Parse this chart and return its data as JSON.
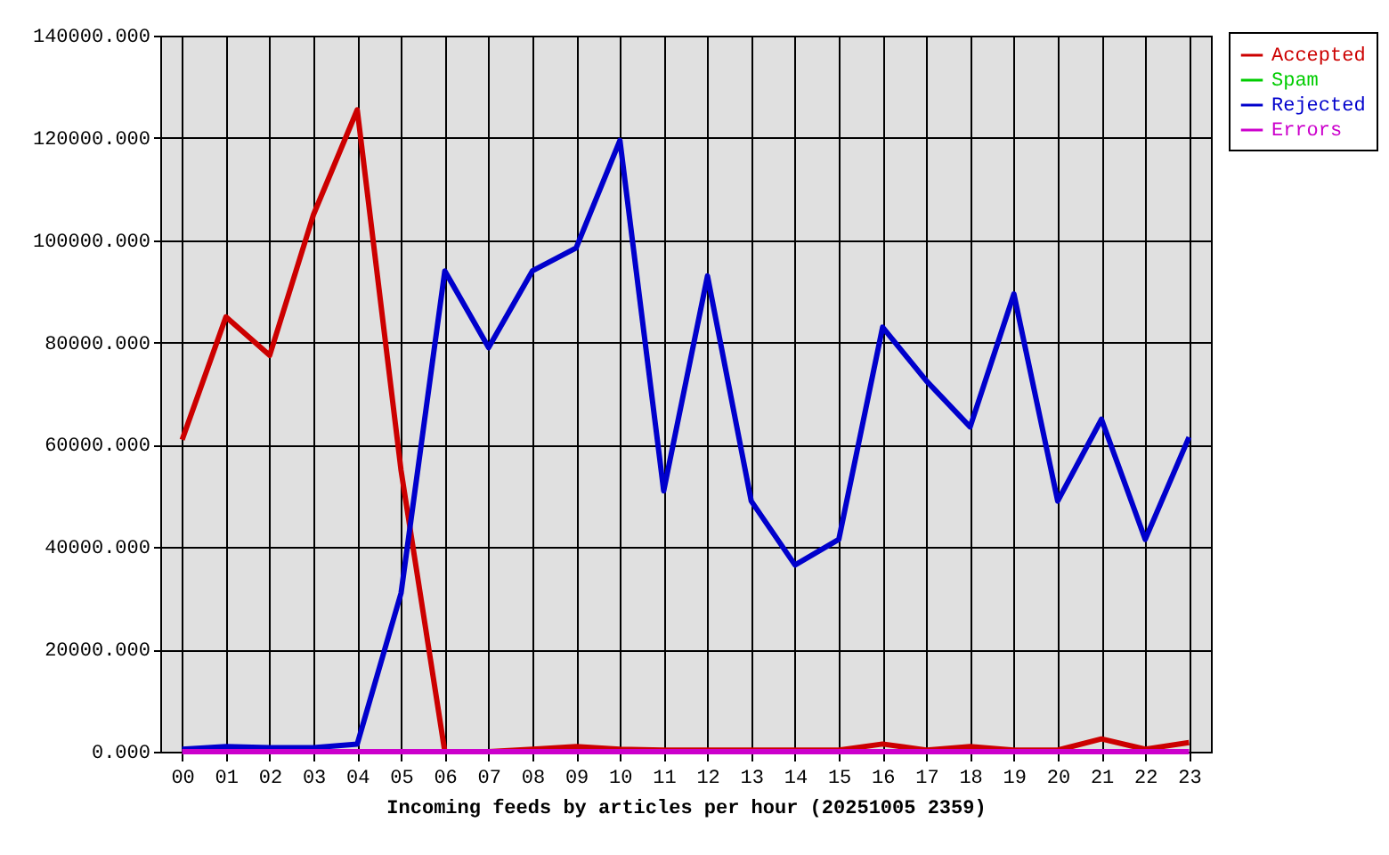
{
  "chart_data": {
    "type": "line",
    "xlabel": "Incoming feeds by articles per hour (20251005 2359)",
    "categories": [
      "00",
      "01",
      "02",
      "03",
      "04",
      "05",
      "06",
      "07",
      "08",
      "09",
      "10",
      "11",
      "12",
      "13",
      "14",
      "15",
      "16",
      "17",
      "18",
      "19",
      "20",
      "21",
      "22",
      "23"
    ],
    "series": [
      {
        "name": "Accepted",
        "color": "#cc0000",
        "values": [
          61000,
          85000,
          77500,
          105000,
          125500,
          55000,
          0,
          0,
          500,
          1000,
          500,
          300,
          300,
          300,
          300,
          300,
          1500,
          300,
          1000,
          300,
          300,
          2500,
          500,
          1800
        ]
      },
      {
        "name": "Spam",
        "color": "#00cc00",
        "values": [
          null,
          null,
          null,
          null,
          null,
          null,
          null,
          null,
          null,
          null,
          null,
          null,
          null,
          null,
          null,
          null,
          null,
          null,
          null,
          null,
          null,
          null,
          null,
          null
        ]
      },
      {
        "name": "Rejected",
        "color": "#0000cc",
        "values": [
          500,
          1000,
          800,
          800,
          1500,
          31000,
          94000,
          79000,
          94000,
          98500,
          119500,
          51000,
          93000,
          49000,
          36500,
          41500,
          83000,
          72500,
          63500,
          89500,
          49000,
          65000,
          41500,
          61500
        ]
      },
      {
        "name": "Errors",
        "color": "#cc00cc",
        "values": [
          0,
          0,
          0,
          0,
          0,
          0,
          0,
          0,
          0,
          0,
          0,
          0,
          0,
          0,
          0,
          0,
          0,
          0,
          0,
          0,
          0,
          0,
          0,
          0
        ]
      }
    ],
    "ylim": [
      0,
      140000
    ],
    "yticks": [
      {
        "value": 0,
        "label": "0.000"
      },
      {
        "value": 20000,
        "label": "20000.000"
      },
      {
        "value": 40000,
        "label": "40000.000"
      },
      {
        "value": 60000,
        "label": "60000.000"
      },
      {
        "value": 80000,
        "label": "80000.000"
      },
      {
        "value": 100000,
        "label": "100000.000"
      },
      {
        "value": 120000,
        "label": "120000.000"
      },
      {
        "value": 140000,
        "label": "140000.000"
      }
    ],
    "grid": true,
    "legend": "top right"
  }
}
